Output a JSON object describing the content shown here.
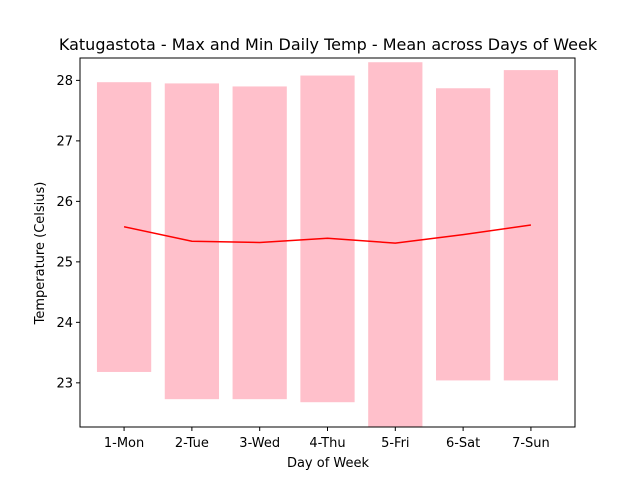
{
  "chart_data": {
    "type": "bar",
    "title": "Katugastota - Max and Min Daily Temp - Mean across Days of Week",
    "xlabel": "Day of Week",
    "ylabel": "Temperature (Celsius)",
    "categories": [
      "1-Mon",
      "2-Tue",
      "3-Wed",
      "4-Thu",
      "5-Fri",
      "6-Sat",
      "7-Sun"
    ],
    "min_values": [
      23.18,
      22.73,
      22.73,
      22.68,
      22.27,
      23.04,
      23.04
    ],
    "max_values": [
      27.97,
      27.95,
      27.9,
      28.08,
      28.3,
      27.87,
      28.17
    ],
    "mean_values": [
      25.58,
      25.34,
      25.32,
      25.39,
      25.31,
      25.45,
      25.61
    ],
    "ylim": [
      22.27,
      28.37
    ],
    "yticks": [
      23,
      24,
      25,
      26,
      27,
      28
    ],
    "bar_color": "#ffc0cb",
    "line_color": "#ff0000",
    "grid": false
  }
}
